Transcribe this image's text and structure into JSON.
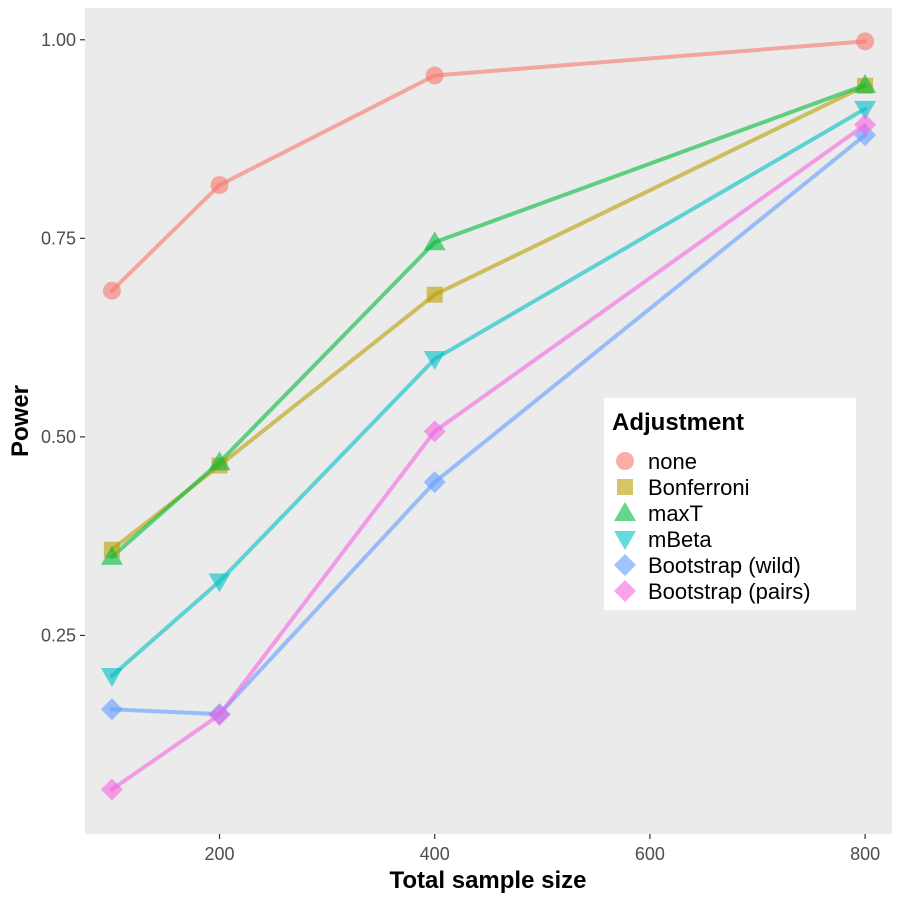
{
  "chart_data": {
    "type": "line",
    "title": "",
    "xlabel": "Total sample size",
    "ylabel": "Power",
    "xlim": [
      75,
      825
    ],
    "ylim": [
      0.0,
      1.04
    ],
    "x_ticks": [
      200,
      400,
      600,
      800
    ],
    "x_tick_labels": [
      "200",
      "400",
      "600",
      "800"
    ],
    "y_ticks": [
      0.25,
      0.5,
      0.75,
      1.0
    ],
    "y_tick_labels": [
      "0.25",
      "0.50",
      "0.75",
      "1.00"
    ],
    "grid": false,
    "background": "#ebebeb",
    "legend": {
      "title": "Adjustment",
      "placement": "right-middle (inside)"
    },
    "x": [
      100,
      200,
      400,
      800
    ],
    "series": [
      {
        "name": "none",
        "color": "#f8766d",
        "marker": "circle",
        "values": [
          0.684,
          0.817,
          0.955,
          0.998
        ]
      },
      {
        "name": "Bonferroni",
        "color": "#b79f00",
        "marker": "square",
        "values": [
          0.358,
          0.464,
          0.679,
          0.942
        ]
      },
      {
        "name": "maxT",
        "color": "#00ba38",
        "marker": "triangle-up",
        "values": [
          0.349,
          0.468,
          0.745,
          0.943
        ]
      },
      {
        "name": "mBeta",
        "color": "#00bfc4",
        "marker": "triangle-down",
        "values": [
          0.199,
          0.318,
          0.598,
          0.913
        ]
      },
      {
        "name": "Bootstrap (wild)",
        "color": "#619cff",
        "marker": "diamond",
        "values": [
          0.157,
          0.151,
          0.443,
          0.88
        ]
      },
      {
        "name": "Bootstrap (pairs)",
        "color": "#f564e3",
        "marker": "diamond",
        "values": [
          0.056,
          0.15,
          0.507,
          0.893
        ]
      }
    ]
  }
}
